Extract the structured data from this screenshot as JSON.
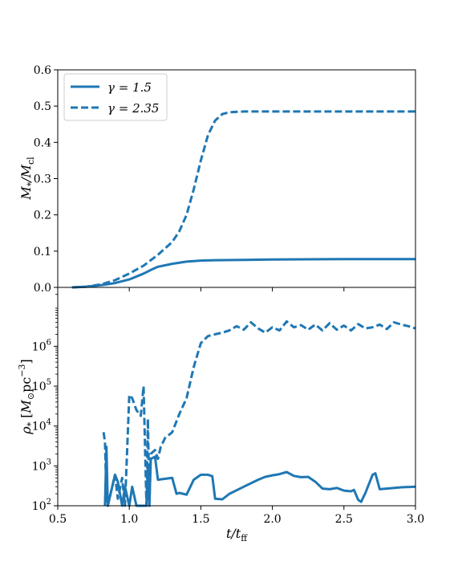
{
  "colors": {
    "series": "#1f77b4",
    "axis": "#000000",
    "legend_border": "#cccccc"
  },
  "chart_data": [
    {
      "type": "line",
      "panel": "top",
      "ylabel": "M_*/M_cl",
      "xlim": [
        0.5,
        3.0
      ],
      "ylim": [
        0.0,
        0.6
      ],
      "yscale": "linear",
      "grid": false,
      "legend": "top-left",
      "yticks": [
        0.0,
        0.1,
        0.2,
        0.3,
        0.4,
        0.5,
        0.6
      ],
      "ytick_labels": [
        "0.0",
        "0.1",
        "0.2",
        "0.3",
        "0.4",
        "0.5",
        "0.6"
      ],
      "series": [
        {
          "name": "γ = 1.5",
          "style": "solid",
          "x": [
            0.6,
            0.7,
            0.8,
            0.9,
            1.0,
            1.1,
            1.15,
            1.2,
            1.3,
            1.4,
            1.5,
            1.6,
            1.8,
            2.0,
            2.5,
            3.0
          ],
          "y": [
            0.0,
            0.002,
            0.006,
            0.012,
            0.022,
            0.038,
            0.048,
            0.057,
            0.065,
            0.071,
            0.074,
            0.075,
            0.076,
            0.077,
            0.078,
            0.078
          ]
        },
        {
          "name": "γ = 2.35",
          "style": "dashed",
          "x": [
            0.6,
            0.7,
            0.8,
            0.9,
            1.0,
            1.1,
            1.2,
            1.3,
            1.35,
            1.4,
            1.45,
            1.5,
            1.55,
            1.6,
            1.65,
            1.7,
            1.8,
            2.0,
            2.5,
            3.0
          ],
          "y": [
            0.0,
            0.002,
            0.008,
            0.02,
            0.038,
            0.06,
            0.09,
            0.125,
            0.155,
            0.2,
            0.27,
            0.35,
            0.42,
            0.46,
            0.478,
            0.483,
            0.485,
            0.485,
            0.485,
            0.485
          ]
        }
      ]
    },
    {
      "type": "line",
      "panel": "bottom",
      "xlabel": "t/t_ff",
      "ylabel": "ρ_* [M_⊙pc^-3]",
      "xlim": [
        0.5,
        3.0
      ],
      "ylim": [
        100,
        30000000
      ],
      "yscale": "log",
      "grid": false,
      "xticks": [
        0.5,
        1.0,
        1.5,
        2.0,
        2.5,
        3.0
      ],
      "xtick_labels": [
        "0.5",
        "1.0",
        "1.5",
        "2.0",
        "2.5",
        "3.0"
      ],
      "yticks": [
        100,
        1000,
        10000,
        100000,
        1000000
      ],
      "ytick_exponents": [
        "2",
        "3",
        "4",
        "5",
        "6"
      ],
      "ytick_base": "10",
      "series": [
        {
          "name": "γ = 1.5",
          "style": "solid",
          "x": [
            0.83,
            0.84,
            0.85,
            0.9,
            0.92,
            0.95,
            0.97,
            1.0,
            1.02,
            1.05,
            1.08,
            1.1,
            1.12,
            1.13,
            1.14,
            1.15,
            1.18,
            1.2,
            1.22,
            1.3,
            1.33,
            1.35,
            1.4,
            1.45,
            1.5,
            1.55,
            1.58,
            1.6,
            1.65,
            1.7,
            1.8,
            1.9,
            1.95,
            2.0,
            2.05,
            2.1,
            2.15,
            2.2,
            2.25,
            2.3,
            2.35,
            2.4,
            2.45,
            2.5,
            2.55,
            2.57,
            2.6,
            2.62,
            2.65,
            2.7,
            2.72,
            2.75,
            2.8,
            2.9,
            3.0
          ],
          "y": [
            100,
            3000,
            100,
            600,
            400,
            100,
            300,
            100,
            300,
            100,
            100,
            100,
            100,
            1000,
            100,
            1500,
            1700,
            450,
            460,
            500,
            200,
            210,
            190,
            450,
            600,
            600,
            550,
            150,
            145,
            200,
            300,
            450,
            530,
            580,
            620,
            700,
            560,
            520,
            530,
            400,
            270,
            260,
            280,
            240,
            230,
            250,
            140,
            125,
            210,
            600,
            650,
            260,
            270,
            290,
            300
          ]
        },
        {
          "name": "γ = 2.35",
          "style": "dashed",
          "x": [
            0.82,
            0.83,
            0.84,
            0.85,
            0.9,
            0.92,
            0.95,
            0.97,
            1.0,
            1.02,
            1.05,
            1.08,
            1.1,
            1.12,
            1.13,
            1.14,
            1.15,
            1.18,
            1.2,
            1.22,
            1.25,
            1.3,
            1.35,
            1.4,
            1.45,
            1.5,
            1.55,
            1.6,
            1.65,
            1.7,
            1.75,
            1.8,
            1.85,
            1.9,
            1.95,
            2.0,
            2.05,
            2.1,
            2.15,
            2.2,
            2.25,
            2.3,
            2.35,
            2.4,
            2.45,
            2.5,
            2.55,
            2.6,
            2.65,
            2.7,
            2.75,
            2.8,
            2.85,
            2.9,
            2.95,
            3.0
          ],
          "y": [
            7000,
            4000,
            150,
            100,
            600,
            150,
            500,
            100,
            60000,
            50000,
            25000,
            18000,
            100000,
            100,
            15000,
            100,
            2000,
            2500,
            1500,
            3000,
            5000,
            7000,
            20000,
            50000,
            300000,
            1200000,
            1800000,
            2000000,
            2200000,
            2500000,
            3200000,
            2600000,
            4000000,
            2800000,
            2200000,
            3000000,
            2500000,
            4200000,
            3000000,
            3400000,
            2600000,
            3500000,
            2500000,
            3800000,
            2600000,
            3300000,
            2500000,
            3600000,
            2800000,
            3000000,
            3500000,
            2700000,
            4000000,
            3500000,
            3200000,
            2800000
          ]
        }
      ]
    }
  ]
}
